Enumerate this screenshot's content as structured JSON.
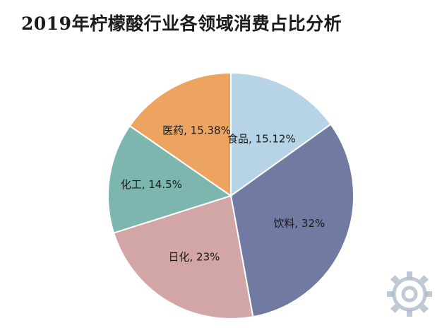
{
  "chart_data": {
    "type": "pie",
    "title": "2019年柠檬酸行业各领域消费占比分析",
    "slices": [
      {
        "label": "食品",
        "value": 15.12,
        "label_text": "食品, 15.12%",
        "color": "#b6d4e5"
      },
      {
        "label": "饮料",
        "value": 32,
        "label_text": "饮料, 32%",
        "color": "#717ba2"
      },
      {
        "label": "日化",
        "value": 23,
        "label_text": "日化, 23%",
        "color": "#d2a5a6"
      },
      {
        "label": "化工",
        "value": 14.5,
        "label_text": "化工, 14.5%",
        "color": "#7db5af"
      },
      {
        "label": "医药",
        "value": 15.38,
        "label_text": "医药, 15.38%",
        "color": "#eea461"
      }
    ],
    "start": "12 o'clock",
    "direction": "clockwise",
    "legend": "none"
  }
}
